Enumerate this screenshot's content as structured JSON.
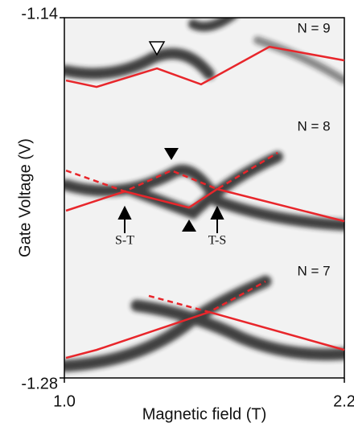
{
  "chart_data": {
    "type": "line",
    "xlabel": "Magnetic field  (T)",
    "ylabel": "Gate Voltage (V)",
    "xlim": [
      1.0,
      2.2
    ],
    "xticks": [
      {
        "value": 1.0,
        "label": "1.0"
      },
      2.2
    ],
    "ylim": [
      -1.28,
      -1.14
    ],
    "yticks": [
      -1.28,
      -1.14
    ],
    "annotations": [
      "N = 9",
      "N = 8",
      "N = 7",
      "S-T",
      "T-S"
    ],
    "series": [
      {
        "color": "#e8262b",
        "linestyle": "solid",
        "x": [
          1.007,
          1.138,
          1.397,
          1.586,
          1.879,
          2.2
        ],
        "values": [
          -1.1644,
          -1.1669,
          -1.1597,
          -1.1659,
          -1.1513,
          -1.1566
        ]
      },
      {
        "color": "#e8262b",
        "linestyle": "solid",
        "x": [
          1.007,
          1.259,
          1.534,
          1.655,
          2.2
        ],
        "values": [
          -1.215,
          -1.2075,
          -1.2138,
          -1.2066,
          -1.2191
        ]
      },
      {
        "color": "#e8262b",
        "linestyle": "dashed",
        "x": [
          1.007,
          1.259,
          1.459,
          1.655,
          1.914
        ],
        "values": [
          -1.1994,
          -1.2075,
          -1.1994,
          -1.2066,
          -1.1925
        ]
      },
      {
        "color": "#e8262b",
        "linestyle": "solid",
        "x": [
          1.007,
          1.138,
          1.621,
          2.2
        ],
        "values": [
          -1.2722,
          -1.2691,
          -1.2544,
          -1.2691
        ]
      },
      {
        "color": "#e8262b",
        "linestyle": "dashed",
        "x": [
          1.362,
          1.621,
          1.862
        ],
        "values": [
          -1.2481,
          -1.2544,
          -1.2425
        ]
      }
    ]
  }
}
